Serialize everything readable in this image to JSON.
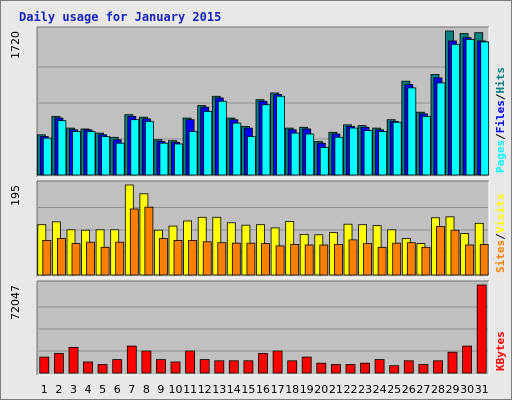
{
  "title": "Daily usage for January 2015",
  "colors": {
    "background": "#c0c0c0",
    "hits": "#008080",
    "files": "#0000ff",
    "pages": "#00ffff",
    "visits": "#ffff00",
    "sites": "#ff8000",
    "kbytes": "#ff0000",
    "weekend_label": "#2e8b57",
    "title": "#1a24b8"
  },
  "chart_data": {
    "type": "bar",
    "categories": [
      "1",
      "2",
      "3",
      "4",
      "5",
      "6",
      "7",
      "8",
      "9",
      "10",
      "11",
      "12",
      "13",
      "14",
      "15",
      "16",
      "17",
      "18",
      "19",
      "20",
      "21",
      "22",
      "23",
      "24",
      "25",
      "26",
      "27",
      "28",
      "29",
      "30",
      "31"
    ],
    "weekend_days": [
      "3",
      "4",
      "10",
      "11",
      "17",
      "18",
      "24",
      "25",
      "31"
    ],
    "panels": [
      {
        "id": "hits-files-pages",
        "ymax": 1720,
        "ymax_label": "1720",
        "legend": [
          "Pages",
          "/",
          "Files",
          "/",
          "Hits"
        ],
        "series": [
          {
            "name": "Hits",
            "values": [
              480,
              700,
              560,
              550,
              500,
              450,
              720,
              690,
              420,
              410,
              680,
              830,
              940,
              680,
              580,
              900,
              980,
              560,
              570,
              400,
              510,
              600,
              590,
              560,
              660,
              1120,
              750,
              1200,
              1720,
              1690,
              1700
            ]
          },
          {
            "name": "Files",
            "values": [
              460,
              680,
              540,
              540,
              480,
              420,
              700,
              670,
              400,
              390,
              660,
              810,
              920,
              660,
              560,
              880,
              960,
              540,
              550,
              380,
              490,
              580,
              570,
              540,
              640,
              1080,
              730,
              1160,
              1600,
              1640,
              1600
            ]
          },
          {
            "name": "Pages",
            "values": [
              440,
              650,
              520,
              520,
              460,
              380,
              660,
              640,
              380,
              370,
              520,
              760,
              880,
              620,
              460,
              840,
              940,
              500,
              490,
              330,
              450,
              560,
              530,
              520,
              630,
              1040,
              700,
              1100,
              1560,
              1620,
              1590
            ]
          }
        ]
      },
      {
        "id": "visits-sites",
        "ymax": 195,
        "ymax_label": "195",
        "legend": [
          "Sites",
          "/",
          "Visits"
        ],
        "series": [
          {
            "name": "Visits",
            "values": [
              109,
              115,
              98,
              97,
              98,
              98,
              195,
              176,
              97,
              106,
              117,
              125,
              125,
              113,
              108,
              109,
              102,
              116,
              88,
              87,
              92,
              110,
              109,
              107,
              98,
              79,
              68,
              124,
              126,
              90,
              112
            ]
          },
          {
            "name": "Sites",
            "values": [
              75,
              79,
              68,
              71,
              60,
              71,
              143,
              147,
              79,
              75,
              75,
              72,
              70,
              69,
              69,
              68,
              63,
              66,
              65,
              65,
              66,
              76,
              68,
              60,
              69,
              70,
              60,
              105,
              97,
              65,
              66
            ]
          }
        ]
      },
      {
        "id": "kbytes",
        "ymax": 72047,
        "ymax_label": "72047",
        "legend": [
          "KBytes"
        ],
        "series": [
          {
            "name": "KBytes",
            "values": [
              13000,
              16000,
              21000,
              9000,
              7000,
              11000,
              22000,
              18000,
              11000,
              9000,
              18000,
              11000,
              10000,
              10000,
              10000,
              16000,
              18000,
              10000,
              13000,
              8000,
              7000,
              7000,
              8000,
              11000,
              6000,
              10000,
              7000,
              10000,
              17000,
              22000,
              72047
            ]
          }
        ]
      }
    ]
  }
}
